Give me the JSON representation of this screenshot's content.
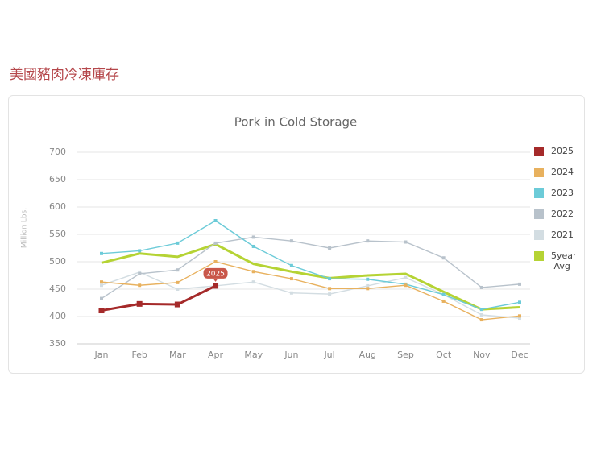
{
  "heading": "美國豬肉冷凍庫存",
  "chart_data": {
    "type": "line",
    "title": "Pork in Cold Storage",
    "y_label": "Million Lbs.",
    "categories": [
      "Jan",
      "Feb",
      "Mar",
      "Apr",
      "May",
      "Jun",
      "Jul",
      "Aug",
      "Sep",
      "Oct",
      "Nov",
      "Dec"
    ],
    "ylim": [
      350,
      700
    ],
    "yticks": [
      350,
      400,
      450,
      500,
      550,
      600,
      650,
      700
    ],
    "grid": true,
    "legend": "right",
    "series": [
      {
        "name": "2025",
        "color": "#a52a2a",
        "values": [
          411,
          423,
          422,
          456,
          null,
          null,
          null,
          null,
          null,
          null,
          null,
          null
        ]
      },
      {
        "name": "2024",
        "color": "#e8b15e",
        "values": [
          463,
          457,
          462,
          500,
          482,
          469,
          451,
          451,
          457,
          428,
          394,
          401
        ]
      },
      {
        "name": "2023",
        "color": "#6ccbd8",
        "values": [
          515,
          520,
          534,
          575,
          528,
          493,
          469,
          468,
          459,
          440,
          413,
          426
        ]
      },
      {
        "name": "2022",
        "color": "#b8c2cb",
        "values": [
          433,
          478,
          485,
          534,
          545,
          538,
          525,
          538,
          536,
          507,
          453,
          459
        ]
      },
      {
        "name": "2021",
        "color": "#d3dde2",
        "values": [
          457,
          481,
          450,
          456,
          463,
          443,
          441,
          456,
          471,
          440,
          403,
          397
        ]
      },
      {
        "name": "5year Avg",
        "color": "#b5d334",
        "values": [
          498,
          515,
          509,
          532,
          496,
          482,
          470,
          475,
          478,
          445,
          413,
          417
        ]
      }
    ]
  }
}
